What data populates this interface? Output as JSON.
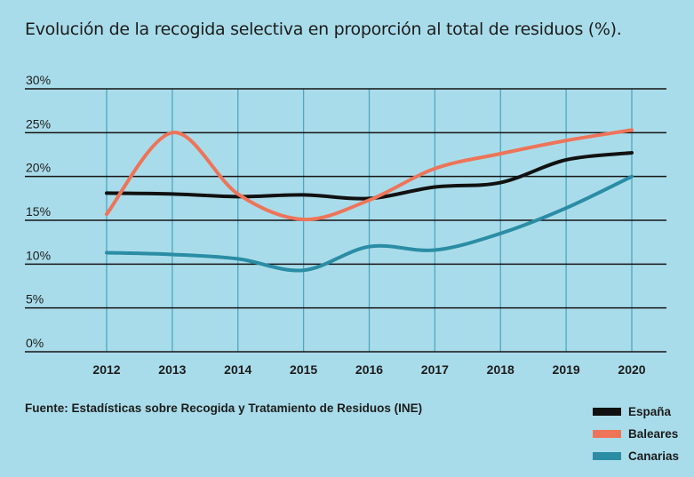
{
  "title": "Evolución de la recogida selectiva en proporción al total de residuos (%).",
  "source": "Fuente: Estadísticas sobre Recogida y Tratamiento de Residuos (INE)",
  "chart_data": {
    "type": "line",
    "title": "Evolución de la recogida selectiva en proporción al total de residuos (%).",
    "x": [
      "2012",
      "2013",
      "2014",
      "2015",
      "2016",
      "2017",
      "2018",
      "2019",
      "2020"
    ],
    "yticks": [
      "0%",
      "5%",
      "10%",
      "15%",
      "20%",
      "25%",
      "30%"
    ],
    "ylim": [
      0,
      30
    ],
    "grid": "horizontal and vertical",
    "legend_position": "bottom-right",
    "series": [
      {
        "name": "España",
        "color": "#111111",
        "values": [
          18.1,
          18.0,
          17.7,
          17.9,
          17.5,
          18.8,
          19.3,
          21.9,
          22.7
        ]
      },
      {
        "name": "Baleares",
        "color": "#ee7459",
        "values": [
          15.7,
          25.0,
          18.0,
          15.1,
          17.3,
          20.9,
          22.6,
          24.1,
          25.3
        ]
      },
      {
        "name": "Canarias",
        "color": "#2a8da5",
        "values": [
          11.3,
          11.1,
          10.6,
          9.3,
          12.0,
          11.6,
          13.5,
          16.4,
          20.0
        ]
      }
    ]
  }
}
